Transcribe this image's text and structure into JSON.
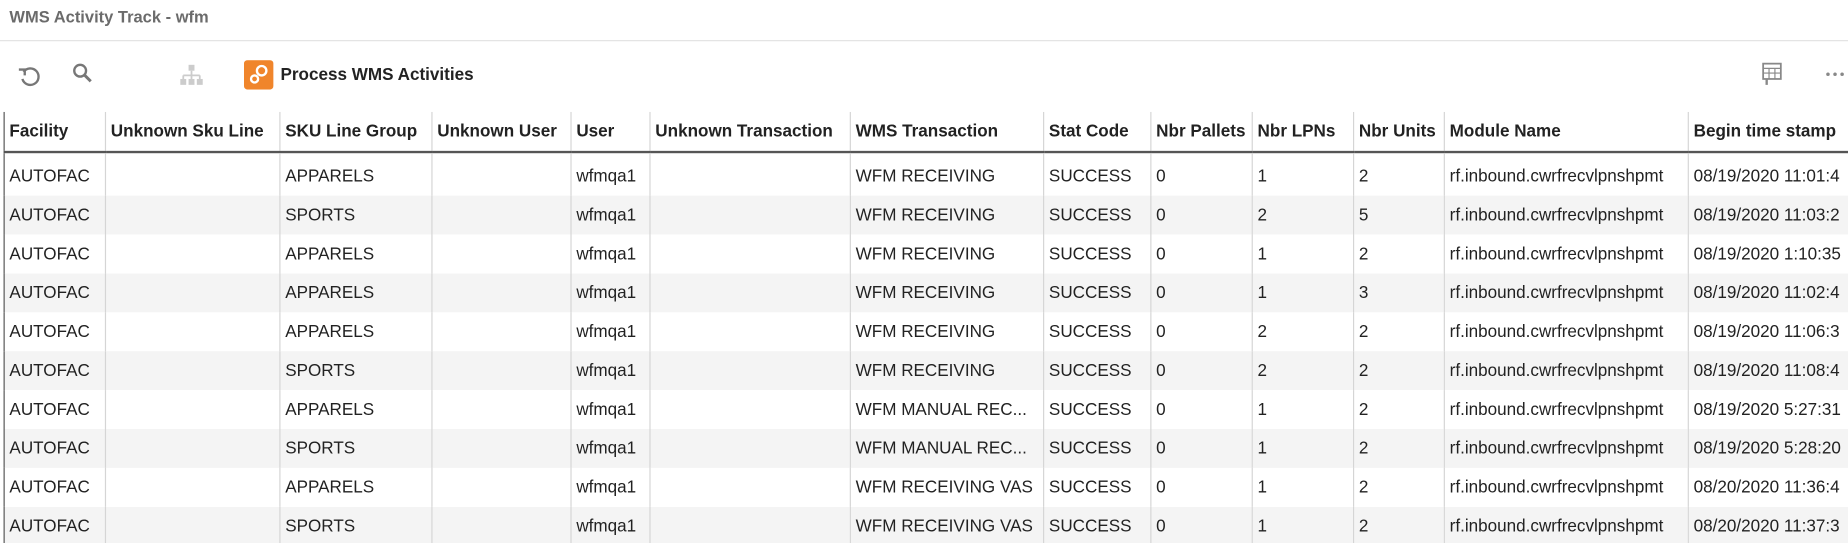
{
  "header": {
    "title": "WMS Activity Track - wfm"
  },
  "toolbar": {
    "button": "Process WMS Activities"
  },
  "table": {
    "columns": [
      "Facility",
      "Unknown Sku Line",
      "SKU Line Group",
      "Unknown User",
      "User",
      "Unknown Transaction",
      "WMS Transaction",
      "Stat Code",
      "Nbr Pallets",
      "Nbr LPNs",
      "Nbr Units",
      "Module Name",
      "Begin time stamp"
    ],
    "rows": [
      [
        "AUTOFAC",
        "",
        "APPARELS",
        "",
        "wfmqa1",
        "",
        "WFM RECEIVING",
        "SUCCESS",
        0,
        1,
        2,
        "rf.inbound.cwrfrecvlpnshpmt",
        "08/19/2020 11:01:4"
      ],
      [
        "AUTOFAC",
        "",
        "SPORTS",
        "",
        "wfmqa1",
        "",
        "WFM RECEIVING",
        "SUCCESS",
        0,
        2,
        5,
        "rf.inbound.cwrfrecvlpnshpmt",
        "08/19/2020 11:03:2"
      ],
      [
        "AUTOFAC",
        "",
        "APPARELS",
        "",
        "wfmqa1",
        "",
        "WFM RECEIVING",
        "SUCCESS",
        0,
        1,
        2,
        "rf.inbound.cwrfrecvlpnshpmt",
        "08/19/2020 1:10:35"
      ],
      [
        "AUTOFAC",
        "",
        "APPARELS",
        "",
        "wfmqa1",
        "",
        "WFM RECEIVING",
        "SUCCESS",
        0,
        1,
        3,
        "rf.inbound.cwrfrecvlpnshpmt",
        "08/19/2020 11:02:4"
      ],
      [
        "AUTOFAC",
        "",
        "APPARELS",
        "",
        "wfmqa1",
        "",
        "WFM RECEIVING",
        "SUCCESS",
        0,
        2,
        2,
        "rf.inbound.cwrfrecvlpnshpmt",
        "08/19/2020 11:06:3"
      ],
      [
        "AUTOFAC",
        "",
        "SPORTS",
        "",
        "wfmqa1",
        "",
        "WFM RECEIVING",
        "SUCCESS",
        0,
        2,
        2,
        "rf.inbound.cwrfrecvlpnshpmt",
        "08/19/2020 11:08:4"
      ],
      [
        "AUTOFAC",
        "",
        "APPARELS",
        "",
        "wfmqa1",
        "",
        "WFM MANUAL REC...",
        "SUCCESS",
        0,
        1,
        2,
        "rf.inbound.cwrfrecvlpnshpmt",
        "08/19/2020 5:27:31"
      ],
      [
        "AUTOFAC",
        "",
        "SPORTS",
        "",
        "wfmqa1",
        "",
        "WFM MANUAL REC...",
        "SUCCESS",
        0,
        1,
        2,
        "rf.inbound.cwrfrecvlpnshpmt",
        "08/19/2020 5:28:20"
      ],
      [
        "AUTOFAC",
        "",
        "APPARELS",
        "",
        "wfmqa1",
        "",
        "WFM RECEIVING VAS",
        "SUCCESS",
        0,
        1,
        2,
        "rf.inbound.cwrfrecvlpnshpmt",
        "08/20/2020 11:36:4"
      ],
      [
        "AUTOFAC",
        "",
        "SPORTS",
        "",
        "wfmqa1",
        "",
        "WFM RECEIVING VAS",
        "SUCCESS",
        0,
        1,
        2,
        "rf.inbound.cwrfrecvlpnshpmt",
        "08/20/2020 11:37:3"
      ]
    ]
  }
}
